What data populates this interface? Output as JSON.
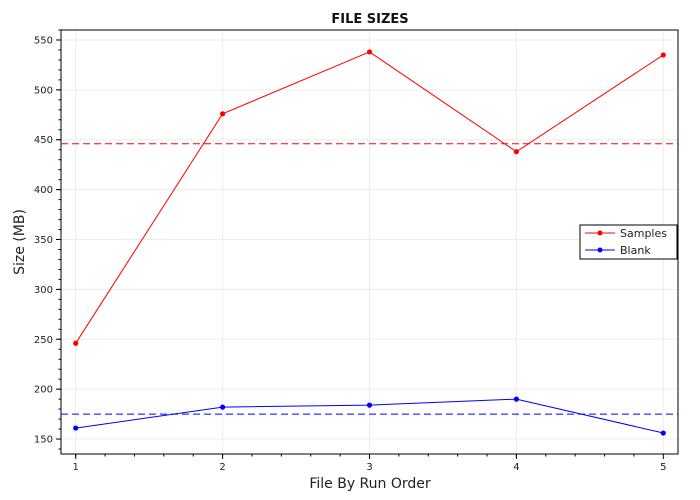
{
  "chart_data": {
    "type": "line",
    "title": "FILE SIZES",
    "xlabel": "File By Run Order",
    "ylabel": "Size (MB)",
    "x": [
      1,
      2,
      3,
      4,
      5
    ],
    "xlim": [
      0.9,
      5.1
    ],
    "ylim": [
      135,
      560
    ],
    "xticks": [
      1,
      2,
      3,
      4,
      5
    ],
    "yticks": [
      150,
      200,
      250,
      300,
      350,
      400,
      450,
      500,
      550
    ],
    "grid": true,
    "legend_position": "right",
    "series": [
      {
        "name": "Samples",
        "color": "#ff0000",
        "values": [
          246,
          476,
          538,
          438,
          535
        ],
        "mean": 446
      },
      {
        "name": "Blank",
        "color": "#0000ff",
        "values": [
          161,
          182,
          184,
          190,
          156
        ],
        "mean": 175
      }
    ]
  }
}
